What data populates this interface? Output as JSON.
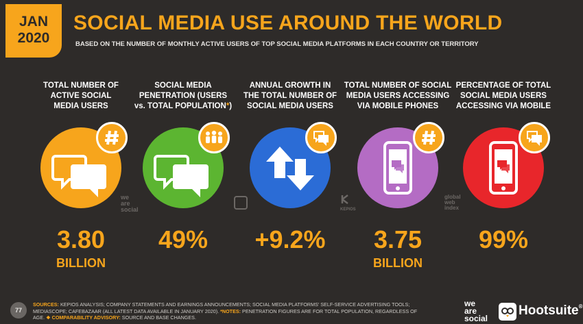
{
  "badge": {
    "month": "JAN",
    "year": "2020"
  },
  "title": "SOCIAL MEDIA USE AROUND THE WORLD",
  "subtitle": "BASED ON THE NUMBER OF MONTHLY ACTIVE USERS OF TOP SOCIAL MEDIA PLATFORMS IN EACH COUNTRY OR TERRITORY",
  "columns": [
    {
      "label_lines": [
        "TOTAL NUMBER OF",
        "ACTIVE SOCIAL",
        "MEDIA USERS"
      ],
      "value": "3.80",
      "unit": "BILLION",
      "color": "#f7a51c",
      "icon": "speech-bubbles-icon",
      "tag_icon": "hashtag-icon"
    },
    {
      "label_lines": [
        "SOCIAL MEDIA",
        "PENETRATION (USERS",
        "vs. TOTAL POPULATION"
      ],
      "label_star": "*",
      "label_close": ")",
      "value": "49%",
      "unit": "",
      "color": "#5cb531",
      "icon": "speech-bubbles-icon",
      "tag_icon": "people-icon"
    },
    {
      "label_lines": [
        "ANNUAL GROWTH IN",
        "THE TOTAL NUMBER OF",
        "SOCIAL MEDIA USERS"
      ],
      "value": "+9.2%",
      "unit": "",
      "color": "#2b6cd6",
      "icon": "up-down-arrows-icon",
      "tag_icon": "speech-bubble-icon"
    },
    {
      "label_lines": [
        "TOTAL NUMBER OF SOCIAL",
        "MEDIA USERS ACCESSING",
        "VIA MOBILE PHONES"
      ],
      "value": "3.75",
      "unit": "BILLION",
      "color": "#b46cc4",
      "icon": "mobile-phone-icon",
      "tag_icon": "hashtag-icon"
    },
    {
      "label_lines": [
        "PERCENTAGE OF TOTAL",
        "SOCIAL MEDIA USERS",
        "ACCESSING VIA MOBILE"
      ],
      "value": "99%",
      "unit": "",
      "color": "#e8262b",
      "icon": "mobile-phone-icon",
      "tag_icon": "speech-bubble-icon"
    }
  ],
  "watermarks": {
    "wearesocial": [
      "we",
      "are",
      "social"
    ],
    "kepios": "KEPIOS",
    "gwi": [
      "global",
      "web",
      "index"
    ]
  },
  "footer": {
    "page": "77",
    "sources_label": "SOURCES:",
    "sources_text": " KEPIOS ANALYSIS; COMPANY STATEMENTS AND EARNINGS ANNOUNCEMENTS; SOCIAL MEDIA PLATFORMS' SELF-SERVICE ADVERTISING TOOLS; MEDIASCOPE; CAFEBAZAAR (ALL LATEST DATA AVAILABLE IN JANUARY 2020). ",
    "notes_label": "*NOTES:",
    "notes_text": " PENETRATION FIGURES ARE FOR TOTAL POPULATION, REGARDLESS OF AGE. ",
    "advisory_label": "❖ COMPARABILITY ADVISORY:",
    "advisory_text": " SOURCE AND BASE CHANGES.",
    "brand1": [
      "we",
      "are",
      "social"
    ],
    "brand2": "Hootsuite",
    "brand2_symbol": "®"
  }
}
